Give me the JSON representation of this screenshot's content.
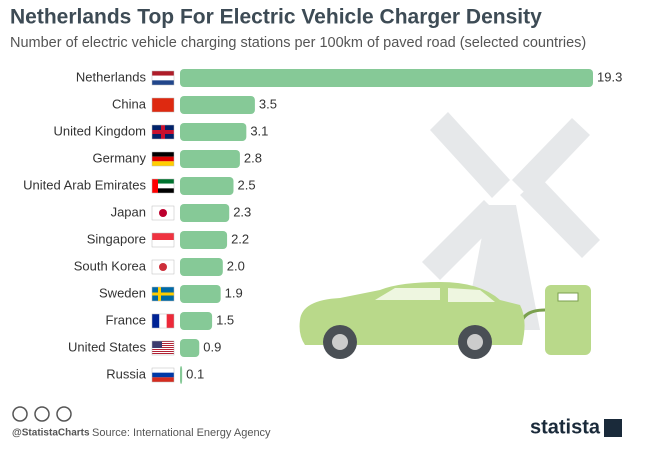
{
  "chart_data": {
    "type": "bar",
    "orientation": "horizontal",
    "title": "Netherlands Top For Electric Vehicle Charger Density",
    "subtitle": "Number of electric vehicle charging stations per 100km of paved road (selected countries)",
    "categories": [
      "Netherlands",
      "China",
      "United Kingdom",
      "Germany",
      "United Arab Emirates",
      "Japan",
      "Singapore",
      "South Korea",
      "Sweden",
      "France",
      "United States",
      "Russia"
    ],
    "values": [
      19.3,
      3.5,
      3.1,
      2.8,
      2.5,
      2.3,
      2.2,
      2.0,
      1.9,
      1.5,
      0.9,
      0.1
    ],
    "value_labels": [
      "19.3",
      "3.5",
      "3.1",
      "2.8",
      "2.5",
      "2.3",
      "2.2",
      "2.0",
      "1.9",
      "1.5",
      "0.9",
      "0.1"
    ],
    "color": "#86c997",
    "handle": "@StatistaCharts",
    "source": "Source: International Energy Agency",
    "brand": "statista"
  }
}
